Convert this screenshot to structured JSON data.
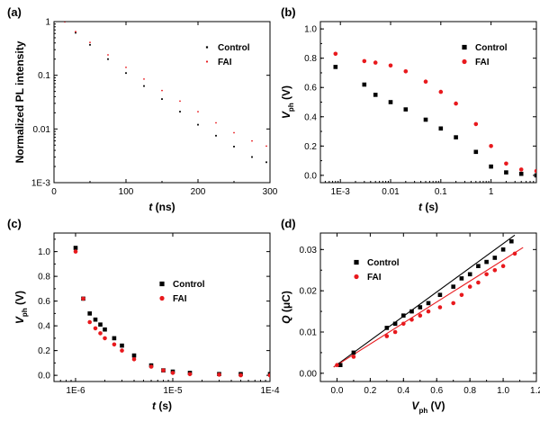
{
  "colors": {
    "control": "#000000",
    "fai": "#e8191d"
  },
  "chart_data": [
    {
      "panel": "(a)",
      "type": "scatter",
      "xlabel_var": "t",
      "xlabel_unit": " (ns)",
      "ylabel": "Normalized PL intensity",
      "xlim": [
        0,
        300
      ],
      "ylim": [
        0.001,
        1
      ],
      "yscale": "log",
      "xticks": [
        0,
        100,
        200,
        300
      ],
      "yticks": [
        1,
        0.1,
        0.01,
        0.001
      ],
      "ytick_labels": [
        "1",
        "0.1",
        "0.01",
        "1E-3"
      ],
      "legend_position": "top-right",
      "series": [
        {
          "name": "Control",
          "x": [
            15,
            30,
            50,
            75,
            100,
            125,
            150,
            175,
            200,
            225,
            250,
            275,
            295
          ],
          "y": [
            1.0,
            0.62,
            0.37,
            0.2,
            0.11,
            0.063,
            0.036,
            0.021,
            0.012,
            0.0075,
            0.0047,
            0.003,
            0.0024
          ]
        },
        {
          "name": "FAI",
          "x": [
            15,
            30,
            50,
            75,
            100,
            125,
            150,
            175,
            200,
            225,
            250,
            275,
            295
          ],
          "y": [
            1.0,
            0.65,
            0.41,
            0.24,
            0.14,
            0.085,
            0.052,
            0.033,
            0.021,
            0.013,
            0.0085,
            0.006,
            0.0048
          ]
        }
      ]
    },
    {
      "panel": "(b)",
      "type": "scatter",
      "xlabel_var": "t",
      "xlabel_unit": " (s)",
      "ylabel_var": "V",
      "ylabel_sub": "ph",
      "ylabel_unit": " (V)",
      "xlim": [
        0.0004,
        8
      ],
      "xscale": "log",
      "ylim": [
        -0.05,
        1.05
      ],
      "xticks": [
        0.001,
        0.01,
        0.1,
        1
      ],
      "xtick_labels": [
        "1E-3",
        "0.01",
        "0.1",
        "1"
      ],
      "yticks": [
        0.0,
        0.2,
        0.4,
        0.6,
        0.8,
        1.0
      ],
      "ytick_labels": [
        "0.0",
        "0.2",
        "0.4",
        "0.6",
        "0.8",
        "1.0"
      ],
      "legend_position": "top-right",
      "series": [
        {
          "name": "Control",
          "x": [
            0.0008,
            0.003,
            0.005,
            0.01,
            0.02,
            0.05,
            0.1,
            0.2,
            0.5,
            1,
            2,
            4,
            8
          ],
          "y": [
            0.74,
            0.62,
            0.55,
            0.5,
            0.45,
            0.38,
            0.32,
            0.26,
            0.16,
            0.06,
            0.02,
            0.01,
            0.0
          ]
        },
        {
          "name": "FAI",
          "x": [
            0.0008,
            0.003,
            0.005,
            0.01,
            0.02,
            0.05,
            0.1,
            0.2,
            0.5,
            1,
            2,
            4,
            8
          ],
          "y": [
            0.83,
            0.78,
            0.77,
            0.75,
            0.71,
            0.64,
            0.57,
            0.49,
            0.35,
            0.2,
            0.08,
            0.04,
            0.03
          ]
        }
      ]
    },
    {
      "panel": "(c)",
      "type": "scatter",
      "xlabel_var": "t",
      "xlabel_unit": " (s)",
      "ylabel_var": "V",
      "ylabel_sub": "ph",
      "ylabel_unit": " (V)",
      "xlim": [
        6e-07,
        0.0001
      ],
      "xscale": "log",
      "ylim": [
        -0.05,
        1.15
      ],
      "xticks": [
        1e-06,
        1e-05,
        0.0001
      ],
      "xtick_labels": [
        "1E-6",
        "1E-5",
        "1E-4"
      ],
      "yticks": [
        0.0,
        0.2,
        0.4,
        0.6,
        0.8,
        1.0
      ],
      "ytick_labels": [
        "0.0",
        "0.2",
        "0.4",
        "0.6",
        "0.8",
        "1.0"
      ],
      "legend_position": "center-right",
      "series": [
        {
          "name": "Control",
          "x": [
            1e-06,
            1.2e-06,
            1.4e-06,
            1.6e-06,
            1.8e-06,
            2e-06,
            2.5e-06,
            3e-06,
            4e-06,
            6e-06,
            8e-06,
            1e-05,
            1.5e-05,
            3e-05,
            5e-05,
            0.0001
          ],
          "y": [
            1.03,
            0.62,
            0.5,
            0.45,
            0.41,
            0.37,
            0.3,
            0.24,
            0.16,
            0.08,
            0.04,
            0.03,
            0.02,
            0.01,
            0.01,
            0.01
          ]
        },
        {
          "name": "FAI",
          "x": [
            1e-06,
            1.2e-06,
            1.4e-06,
            1.6e-06,
            1.8e-06,
            2e-06,
            2.5e-06,
            3e-06,
            4e-06,
            6e-06,
            8e-06,
            1e-05,
            1.5e-05,
            3e-05,
            5e-05,
            0.0001
          ],
          "y": [
            1.0,
            0.62,
            0.43,
            0.38,
            0.34,
            0.3,
            0.25,
            0.2,
            0.13,
            0.07,
            0.04,
            0.02,
            0.01,
            0.005,
            0.0,
            0.0
          ]
        }
      ]
    },
    {
      "panel": "(d)",
      "type": "scatter",
      "xlabel_var": "V",
      "xlabel_sub": "ph",
      "xlabel_unit": " (V)",
      "ylabel_var": "Q",
      "ylabel_unit": " (μC)",
      "xlim": [
        -0.1,
        1.2
      ],
      "ylim": [
        -0.002,
        0.034
      ],
      "xticks": [
        0.0,
        0.2,
        0.4,
        0.6,
        0.8,
        1.0,
        1.2
      ],
      "xtick_labels": [
        "0.0",
        "0.2",
        "0.4",
        "0.6",
        "0.8",
        "1.0",
        "1.2"
      ],
      "yticks": [
        0.0,
        0.01,
        0.02,
        0.03
      ],
      "ytick_labels": [
        "0.00",
        "0.01",
        "0.02",
        "0.03"
      ],
      "legend_position": "top-left",
      "series": [
        {
          "name": "Control",
          "x": [
            0.02,
            0.1,
            0.3,
            0.35,
            0.4,
            0.45,
            0.5,
            0.55,
            0.62,
            0.7,
            0.75,
            0.8,
            0.85,
            0.9,
            0.95,
            1.0,
            1.05
          ],
          "y": [
            0.002,
            0.005,
            0.011,
            0.012,
            0.014,
            0.015,
            0.016,
            0.017,
            0.019,
            0.021,
            0.023,
            0.024,
            0.026,
            0.027,
            0.028,
            0.03,
            0.032
          ]
        },
        {
          "name": "FAI",
          "x": [
            0.0,
            0.1,
            0.3,
            0.35,
            0.4,
            0.45,
            0.5,
            0.55,
            0.62,
            0.7,
            0.75,
            0.8,
            0.85,
            0.9,
            0.95,
            1.0,
            1.07
          ],
          "y": [
            0.002,
            0.004,
            0.009,
            0.01,
            0.012,
            0.013,
            0.014,
            0.015,
            0.016,
            0.017,
            0.019,
            0.021,
            0.022,
            0.024,
            0.025,
            0.026,
            0.029
          ]
        }
      ],
      "fits": [
        {
          "name": "Control",
          "x": [
            -0.02,
            1.07
          ],
          "y": [
            0.0015,
            0.0335
          ]
        },
        {
          "name": "FAI",
          "x": [
            -0.02,
            1.12
          ],
          "y": [
            0.0015,
            0.0305
          ]
        }
      ]
    }
  ]
}
